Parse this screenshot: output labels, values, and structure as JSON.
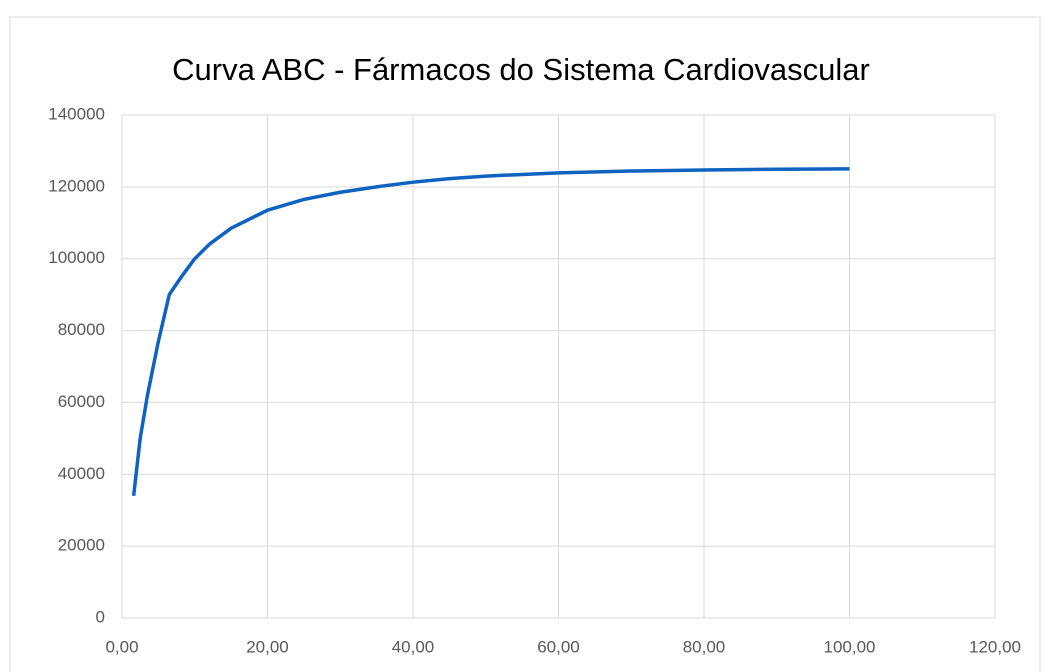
{
  "chart_data": {
    "type": "line",
    "title": "Curva ABC - Fármacos do Sistema Cardiovascular",
    "x": [
      1.6,
      2.5,
      3.5,
      5,
      6.5,
      8,
      10,
      12,
      15,
      20,
      25,
      30,
      35,
      40,
      45,
      50,
      60,
      70,
      80,
      90,
      100
    ],
    "series": [
      {
        "color": "#0e62c0",
        "values": [
          34000,
          50000,
          62000,
          77000,
          90000,
          94500,
          100000,
          104000,
          108500,
          113500,
          116500,
          118500,
          120000,
          121300,
          122300,
          123000,
          123900,
          124400,
          124700,
          124900,
          125000
        ]
      }
    ],
    "xlim": [
      0,
      120
    ],
    "xticks": [
      {
        "value": 0,
        "label": "0,00"
      },
      {
        "value": 20,
        "label": "20,00"
      },
      {
        "value": 40,
        "label": "40,00"
      },
      {
        "value": 60,
        "label": "60,00"
      },
      {
        "value": 80,
        "label": "80,00"
      },
      {
        "value": 100,
        "label": "100,00"
      },
      {
        "value": 120,
        "label": "120,00"
      }
    ],
    "ylim": [
      0,
      140000
    ],
    "yticks": [
      0,
      20000,
      40000,
      60000,
      80000,
      100000,
      120000,
      140000
    ],
    "grid": true
  }
}
